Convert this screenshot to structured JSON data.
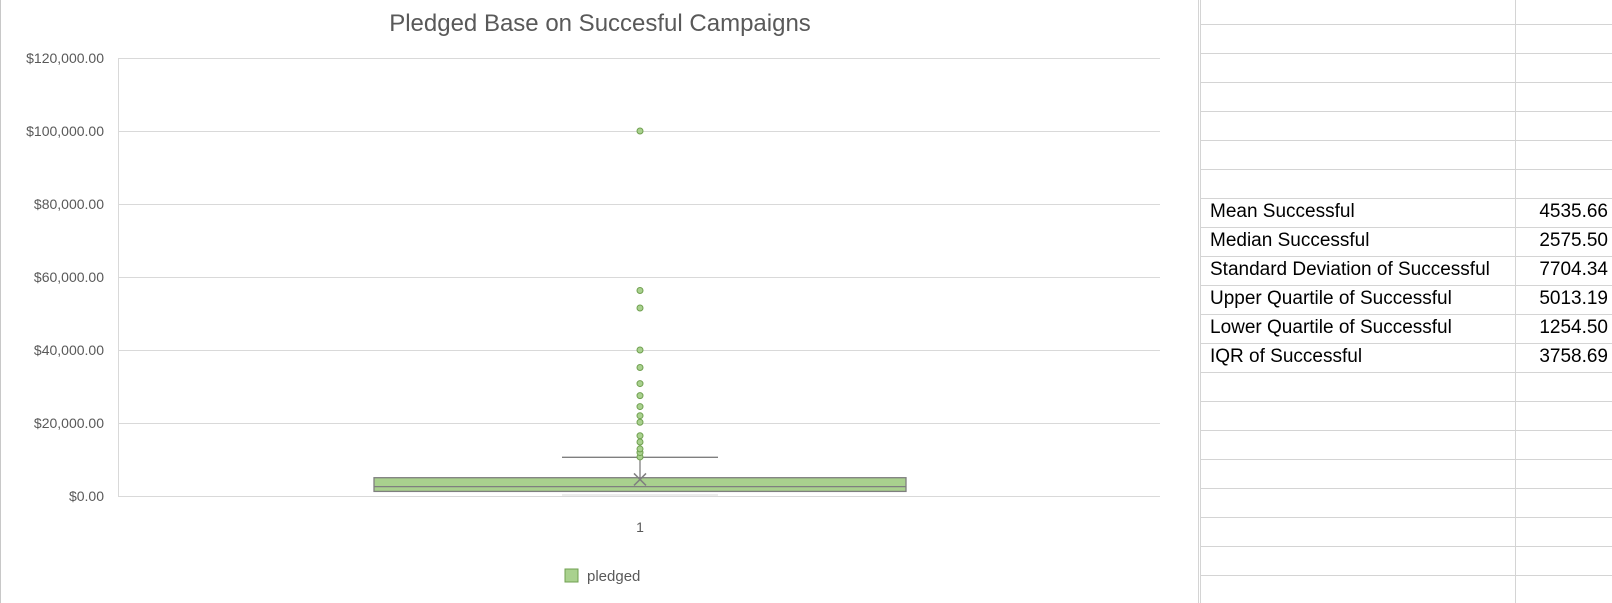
{
  "chart_data": {
    "type": "box",
    "title": "Pledged Base on Succesful Campaigns",
    "xlabel": "",
    "ylabel": "",
    "categories": [
      "1"
    ],
    "ylim": [
      0,
      120000
    ],
    "ytick_labels": [
      "$0.00",
      "$20,000.00",
      "$40,000.00",
      "$60,000.00",
      "$80,000.00",
      "$100,000.00",
      "$120,000.00"
    ],
    "yticks": [
      0,
      20000,
      40000,
      60000,
      80000,
      100000,
      120000
    ],
    "grid": true,
    "legend_position": "bottom",
    "series": [
      {
        "name": "pledged",
        "color": "#a9d18e",
        "q1": 1254.5,
        "median": 2575.5,
        "q3": 5013.19,
        "mean": 4535.66,
        "whisker_low": 0,
        "whisker_high": 10600,
        "outliers": [
          10700,
          11900,
          12900,
          14800,
          16500,
          20200,
          22000,
          24500,
          27500,
          30800,
          35200,
          40000,
          51500,
          56300,
          100000
        ]
      }
    ]
  },
  "stats": [
    {
      "label": "Mean Successful",
      "value": "4535.66"
    },
    {
      "label": "Median Successful",
      "value": "2575.50"
    },
    {
      "label": "Standard Deviation of Successful",
      "value": "7704.34"
    },
    {
      "label": "Upper Quartile of Successful",
      "value": "5013.19"
    },
    {
      "label": "Lower Quartile of Successful",
      "value": "1254.50"
    },
    {
      "label": "IQR of Successful",
      "value": "3758.69"
    }
  ]
}
